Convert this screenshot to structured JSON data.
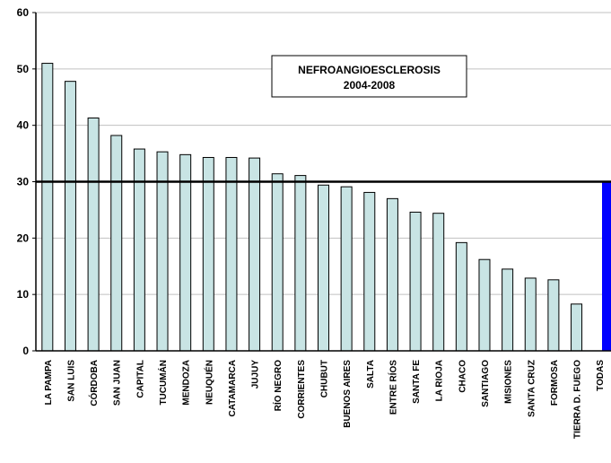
{
  "chart_data": {
    "type": "bar",
    "title": "NEFROANGIOESCLEROSIS",
    "subtitle": "2004-2008",
    "xlabel": "",
    "ylabel": "",
    "ylim": [
      0,
      60
    ],
    "yticks": [
      0,
      10,
      20,
      30,
      40,
      50,
      60
    ],
    "grid": true,
    "reference_line": 30,
    "categories": [
      "LA PAMPA",
      "SAN LUIS",
      "CÓRDOBA",
      "SAN JUAN",
      "CAPITAL",
      "TUCUMÁN",
      "MENDOZA",
      "NEUQUÉN",
      "CATAMARCA",
      "JUJUY",
      "RÍO NEGRO",
      "CORRIENTES",
      "CHUBUT",
      "BUENOS AIRES",
      "SALTA",
      "ENTRE RÍOS",
      "SANTA FE",
      "LA RIOJA",
      "CHACO",
      "SANTIAGO",
      "MISIONES",
      "SANTA CRUZ",
      "FORMOSA",
      "TIERRA  D. FUEGO",
      "TODAS"
    ],
    "values": [
      51.0,
      47.8,
      41.3,
      38.2,
      35.8,
      35.3,
      34.8,
      34.3,
      34.3,
      34.2,
      31.4,
      31.1,
      29.4,
      29.1,
      28.1,
      27.0,
      24.6,
      24.4,
      19.2,
      16.2,
      14.5,
      12.9,
      12.6,
      8.3,
      30.1
    ],
    "colors": {
      "bar": "#c8e4e4",
      "highlight": "#0000ff",
      "grid": "#c0c0c0",
      "reference": "#000000"
    }
  }
}
